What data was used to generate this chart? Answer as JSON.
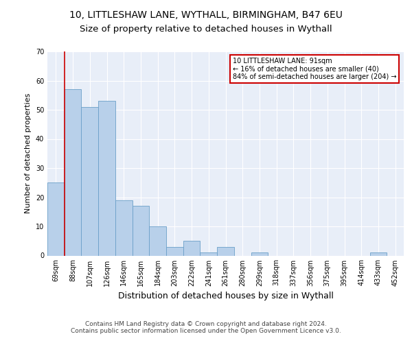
{
  "title1": "10, LITTLESHAW LANE, WYTHALL, BIRMINGHAM, B47 6EU",
  "title2": "Size of property relative to detached houses in Wythall",
  "xlabel": "Distribution of detached houses by size in Wythall",
  "ylabel": "Number of detached properties",
  "bar_color": "#b8d0ea",
  "bar_edge_color": "#6a9fc8",
  "background_color": "#e8eef8",
  "grid_color": "#ffffff",
  "categories": [
    "69sqm",
    "88sqm",
    "107sqm",
    "126sqm",
    "146sqm",
    "165sqm",
    "184sqm",
    "203sqm",
    "222sqm",
    "241sqm",
    "261sqm",
    "280sqm",
    "299sqm",
    "318sqm",
    "337sqm",
    "356sqm",
    "375sqm",
    "395sqm",
    "414sqm",
    "433sqm",
    "452sqm"
  ],
  "values": [
    25,
    57,
    51,
    53,
    19,
    17,
    10,
    3,
    5,
    1,
    3,
    0,
    1,
    0,
    0,
    0,
    0,
    0,
    0,
    1,
    0
  ],
  "ylim": [
    0,
    70
  ],
  "yticks": [
    0,
    10,
    20,
    30,
    40,
    50,
    60,
    70
  ],
  "property_line_x": 0.5,
  "annotation_text": "10 LITTLESHAW LANE: 91sqm\n← 16% of detached houses are smaller (40)\n84% of semi-detached houses are larger (204) →",
  "annotation_box_color": "#ffffff",
  "annotation_border_color": "#cc0000",
  "footer_text": "Contains HM Land Registry data © Crown copyright and database right 2024.\nContains public sector information licensed under the Open Government Licence v3.0.",
  "title1_fontsize": 10,
  "title2_fontsize": 9.5,
  "xlabel_fontsize": 9,
  "ylabel_fontsize": 8,
  "tick_fontsize": 7,
  "annotation_fontsize": 7,
  "footer_fontsize": 6.5
}
